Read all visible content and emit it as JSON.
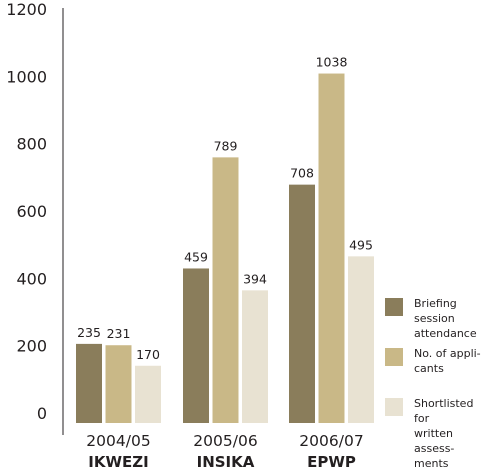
{
  "chart_data": {
    "type": "bar",
    "title": "",
    "xlabel": "",
    "ylabel": "",
    "ylim": [
      0,
      1200
    ],
    "yticks": [
      0,
      200,
      400,
      600,
      800,
      1000,
      1200
    ],
    "grid": false,
    "legend_position": "right",
    "categories": [
      "2004/05",
      "2005/06",
      "2006/07"
    ],
    "group_labels": [
      "IKWEZI",
      "INSIKA",
      "EPWP"
    ],
    "series": [
      {
        "name": "Briefing session attendance",
        "label_lines": [
          "Briefing session",
          "attendance"
        ],
        "color": "#8a7d5b",
        "values": [
          235,
          459,
          708
        ]
      },
      {
        "name": "No. of applicants",
        "label_lines": [
          "No. of appli-",
          "cants"
        ],
        "color": "#c9b887",
        "values": [
          231,
          789,
          1038
        ]
      },
      {
        "name": "Shortlisted for written assessments",
        "label_lines": [
          "Shortlisted for",
          "written assess-",
          "ments"
        ],
        "color": "#e8e2d2",
        "values": [
          170,
          394,
          495
        ]
      }
    ]
  }
}
